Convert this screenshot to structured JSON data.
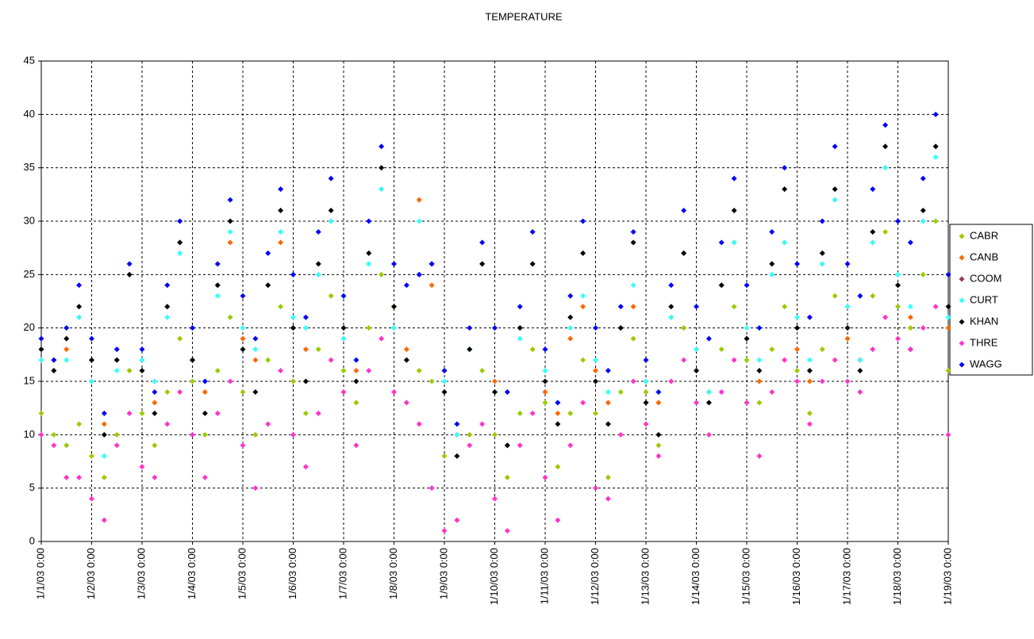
{
  "chart_data": {
    "type": "scatter",
    "title": "TEMPERATURE",
    "x": [
      "1/1/03 0:00",
      "1/1/03 6:00",
      "1/1/03 12:00",
      "1/1/03 18:00",
      "1/2/03 0:00",
      "1/2/03 6:00",
      "1/2/03 12:00",
      "1/2/03 18:00",
      "1/3/03 0:00",
      "1/3/03 6:00",
      "1/3/03 12:00",
      "1/3/03 18:00",
      "1/4/03 0:00",
      "1/4/03 6:00",
      "1/4/03 12:00",
      "1/4/03 18:00",
      "1/5/03 0:00",
      "1/5/03 6:00",
      "1/5/03 12:00",
      "1/5/03 18:00",
      "1/6/03 0:00",
      "1/6/03 6:00",
      "1/6/03 12:00",
      "1/6/03 18:00",
      "1/7/03 0:00",
      "1/7/03 6:00",
      "1/7/03 12:00",
      "1/7/03 18:00",
      "1/8/03 0:00",
      "1/8/03 6:00",
      "1/8/03 12:00",
      "1/8/03 18:00",
      "1/9/03 0:00",
      "1/9/03 6:00",
      "1/9/03 12:00",
      "1/9/03 18:00",
      "1/10/03 0:00",
      "1/10/03 6:00",
      "1/10/03 12:00",
      "1/10/03 18:00",
      "1/11/03 0:00",
      "1/11/03 6:00",
      "1/11/03 12:00",
      "1/11/03 18:00",
      "1/12/03 0:00",
      "1/12/03 6:00",
      "1/12/03 12:00",
      "1/12/03 18:00",
      "1/13/03 0:00",
      "1/13/03 6:00",
      "1/13/03 12:00",
      "1/13/03 18:00",
      "1/14/03 0:00",
      "1/14/03 6:00",
      "1/14/03 12:00",
      "1/14/03 18:00",
      "1/15/03 0:00",
      "1/15/03 6:00",
      "1/15/03 12:00",
      "1/15/03 18:00",
      "1/16/03 0:00",
      "1/16/03 6:00",
      "1/16/03 12:00",
      "1/16/03 18:00",
      "1/17/03 0:00",
      "1/17/03 6:00",
      "1/17/03 12:00",
      "1/17/03 18:00",
      "1/18/03 0:00",
      "1/18/03 6:00",
      "1/18/03 12:00",
      "1/18/03 18:00",
      "1/19/03 0:00"
    ],
    "series": [
      {
        "name": "CABR",
        "color": "#99cc00",
        "values": [
          12,
          10,
          9,
          11,
          8,
          6,
          10,
          16,
          12,
          9,
          14,
          19,
          15,
          10,
          16,
          21,
          14,
          10,
          17,
          22,
          15,
          12,
          18,
          23,
          16,
          13,
          20,
          25,
          20,
          17,
          16,
          15,
          8,
          2,
          10,
          16,
          10,
          6,
          12,
          18,
          13,
          7,
          12,
          17,
          12,
          6,
          14,
          19,
          14,
          9,
          15,
          20,
          16,
          14,
          18,
          22,
          17,
          13,
          18,
          22,
          16,
          12,
          18,
          23,
          20,
          17,
          23,
          29,
          22,
          20,
          25,
          30,
          16
        ]
      },
      {
        "name": "CANB",
        "color": "#ff6600",
        "values": [
          17,
          17,
          18,
          21,
          17,
          11,
          17,
          25,
          17,
          13,
          22,
          28,
          17,
          14,
          24,
          28,
          19,
          17,
          24,
          28,
          20,
          18,
          25,
          30,
          19,
          16,
          26,
          33,
          22,
          18,
          32,
          24,
          16,
          10,
          18,
          26,
          15,
          9,
          20,
          26,
          14,
          12,
          19,
          22,
          16,
          13,
          20,
          22,
          15,
          13,
          21,
          27,
          18,
          14,
          24,
          28,
          19,
          15,
          25,
          28,
          18,
          15,
          26,
          32,
          19,
          17,
          28,
          35,
          24,
          21,
          30,
          37,
          20
        ]
      },
      {
        "name": "COOM",
        "color": "#993366",
        "values": [
          null,
          null,
          null,
          null,
          null,
          null,
          null,
          null,
          null,
          null,
          null,
          null,
          null,
          null,
          null,
          null,
          null,
          null,
          null,
          null,
          null,
          null,
          null,
          null,
          null,
          null,
          null,
          null,
          null,
          null,
          null,
          null,
          null,
          null,
          null,
          null,
          null,
          null,
          null,
          null,
          null,
          null,
          null,
          null,
          null,
          null,
          null,
          null,
          null,
          null,
          null,
          null,
          null,
          null,
          null,
          null,
          null,
          null,
          null,
          null,
          null,
          null,
          null,
          null,
          null,
          null,
          null,
          null,
          null,
          null,
          null,
          null,
          null
        ]
      },
      {
        "name": "CURT",
        "color": "#33ffff",
        "values": [
          17,
          16,
          17,
          21,
          15,
          8,
          16,
          25,
          17,
          15,
          21,
          27,
          17,
          15,
          23,
          29,
          20,
          18,
          24,
          29,
          21,
          20,
          25,
          30,
          19,
          17,
          26,
          33,
          20,
          17,
          30,
          26,
          15,
          10,
          18,
          26,
          14,
          9,
          19,
          26,
          16,
          13,
          20,
          23,
          17,
          14,
          20,
          24,
          15,
          14,
          21,
          27,
          18,
          14,
          24,
          28,
          20,
          17,
          25,
          28,
          21,
          17,
          26,
          32,
          22,
          17,
          28,
          35,
          25,
          22,
          30,
          36,
          21
        ]
      },
      {
        "name": "KHAN",
        "color": "#000000",
        "values": [
          18,
          16,
          19,
          22,
          17,
          10,
          17,
          25,
          16,
          12,
          22,
          28,
          17,
          12,
          24,
          30,
          18,
          14,
          24,
          31,
          20,
          15,
          26,
          31,
          20,
          15,
          27,
          35,
          22,
          17,
          25,
          26,
          14,
          8,
          18,
          26,
          14,
          9,
          20,
          26,
          15,
          11,
          21,
          27,
          15,
          11,
          20,
          28,
          13,
          10,
          22,
          27,
          16,
          13,
          24,
          31,
          19,
          16,
          26,
          33,
          20,
          16,
          27,
          33,
          20,
          16,
          29,
          37,
          24,
          18,
          31,
          37,
          22
        ]
      },
      {
        "name": "THRE",
        "color": "#ff33cc",
        "values": [
          10,
          9,
          6,
          6,
          4,
          2,
          9,
          12,
          7,
          6,
          11,
          14,
          10,
          6,
          12,
          15,
          9,
          5,
          11,
          16,
          10,
          7,
          12,
          17,
          14,
          9,
          16,
          19,
          14,
          13,
          11,
          5,
          1,
          2,
          9,
          11,
          4,
          1,
          9,
          12,
          6,
          2,
          9,
          13,
          5,
          4,
          10,
          15,
          11,
          8,
          15,
          17,
          13,
          10,
          14,
          17,
          13,
          8,
          14,
          17,
          15,
          11,
          15,
          17,
          15,
          14,
          18,
          21,
          19,
          18,
          20,
          22,
          10
        ]
      },
      {
        "name": "WAGG",
        "color": "#0000ff",
        "values": [
          19,
          17,
          20,
          24,
          19,
          12,
          18,
          26,
          18,
          14,
          24,
          30,
          20,
          15,
          26,
          32,
          23,
          19,
          27,
          33,
          25,
          21,
          29,
          34,
          23,
          17,
          30,
          37,
          26,
          24,
          25,
          26,
          16,
          11,
          20,
          28,
          20,
          14,
          22,
          29,
          18,
          13,
          23,
          30,
          20,
          16,
          22,
          29,
          17,
          14,
          24,
          31,
          22,
          19,
          28,
          34,
          24,
          20,
          29,
          35,
          26,
          21,
          30,
          37,
          26,
          23,
          33,
          39,
          30,
          28,
          34,
          40,
          25
        ]
      }
    ],
    "xlim": [
      "1/1/03 0:00",
      "1/19/03 0:00"
    ],
    "xticks": [
      "1/1/03 0:00",
      "1/2/03 0:00",
      "1/3/03 0:00",
      "1/4/03 0:00",
      "1/5/03 0:00",
      "1/6/03 0:00",
      "1/7/03 0:00",
      "1/8/03 0:00",
      "1/9/03 0:00",
      "1/10/03 0:00",
      "1/11/03 0:00",
      "1/12/03 0:00",
      "1/13/03 0:00",
      "1/14/03 0:00",
      "1/15/03 0:00",
      "1/16/03 0:00",
      "1/17/03 0:00",
      "1/18/03 0:00",
      "1/19/03 0:00"
    ],
    "ylim": [
      0,
      45
    ],
    "yticks": [
      0,
      5,
      10,
      15,
      20,
      25,
      30,
      35,
      40,
      45
    ],
    "grid": true
  }
}
